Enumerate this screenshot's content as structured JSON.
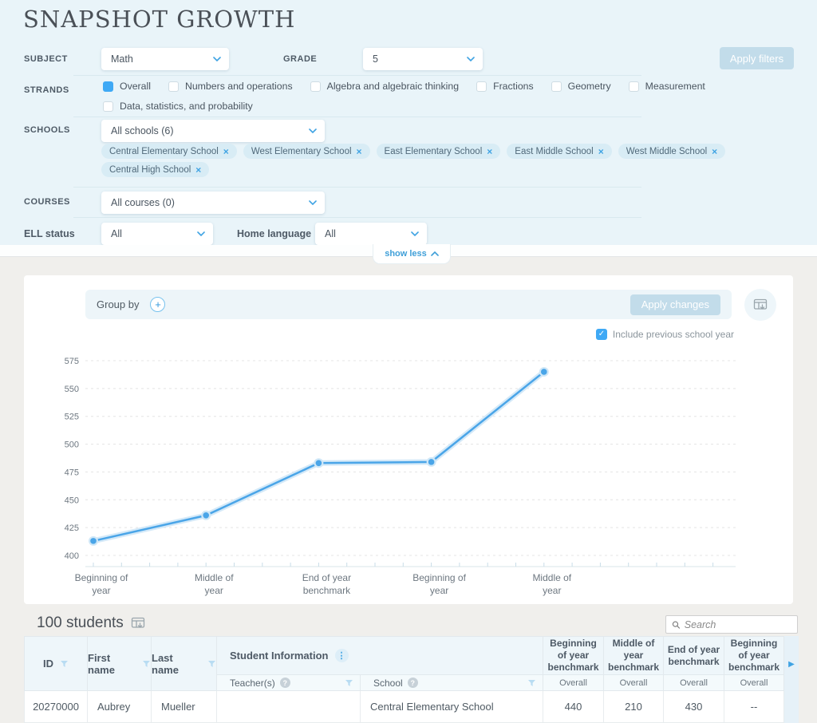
{
  "page": {
    "title": "SNAPSHOT GROWTH"
  },
  "icons": {
    "remove_tag": "×",
    "add": "+",
    "check": "✓",
    "menu_dots": "⋮",
    "help": "?",
    "scroll_right": "▶"
  },
  "filters": {
    "subject": {
      "label": "SUBJECT",
      "value": "Math"
    },
    "grade": {
      "label": "GRADE",
      "value": "5"
    },
    "apply_filters_label": "Apply filters",
    "strands": {
      "label": "STRANDS",
      "options": [
        {
          "label": "Overall",
          "checked": true
        },
        {
          "label": "Numbers and operations",
          "checked": false
        },
        {
          "label": "Algebra and algebraic thinking",
          "checked": false
        },
        {
          "label": "Fractions",
          "checked": false
        },
        {
          "label": "Geometry",
          "checked": false
        },
        {
          "label": "Measurement",
          "checked": false
        },
        {
          "label": "Data, statistics, and probability",
          "checked": false
        }
      ]
    },
    "schools": {
      "label": "SCHOOLS",
      "value": "All schools (6)",
      "tags": [
        "Central Elementary School",
        "West Elementary School",
        "East Elementary School",
        "East Middle School",
        "West Middle School",
        "Central High School"
      ]
    },
    "courses": {
      "label": "COURSES",
      "value": "All courses (0)"
    },
    "ell_status": {
      "label": "ELL status",
      "value": "All"
    },
    "home_language": {
      "label": "Home language",
      "value": "All"
    },
    "show_less_label": "show less"
  },
  "chart_panel": {
    "group_by_label": "Group by",
    "apply_changes_label": "Apply changes",
    "include_previous_label": "Include previous school year",
    "include_previous_checked": true
  },
  "chart_data": {
    "type": "line",
    "title": "",
    "categories": [
      "Beginning of year",
      "Middle of year",
      "End of year benchmark",
      "Beginning of year",
      "Middle of year"
    ],
    "values": [
      413,
      436,
      483,
      484,
      565
    ],
    "yticks": [
      400,
      425,
      450,
      475,
      500,
      525,
      550,
      575
    ],
    "ylim": [
      390,
      583
    ],
    "line_color": "#4aa5e8",
    "halo_color": "#cfe7f7",
    "grid": "horizontal-dashed",
    "legend_position": "none"
  },
  "students": {
    "count_label": "100 students",
    "search_placeholder": "Search",
    "table": {
      "columns": [
        {
          "label": "ID"
        },
        {
          "label": "First name"
        },
        {
          "label": "Last name"
        }
      ],
      "group_header": "Student Information",
      "sub_columns": [
        {
          "label": "Teacher(s)"
        },
        {
          "label": "School"
        }
      ],
      "benchmark_columns": [
        "Beginning of year benchmark",
        "Middle of year benchmark",
        "End of year benchmark",
        "Beginning of year benchmark"
      ],
      "benchmark_subheader": "Overall",
      "rows": [
        {
          "id": "20270000",
          "first_name": "Aubrey",
          "last_name": "Mueller",
          "teachers": "",
          "school": "Central Elementary School",
          "values": [
            "440",
            "210",
            "430",
            "--"
          ]
        }
      ]
    }
  },
  "colors": {
    "accent_blue": "#3fa3e3",
    "checkbox_blue": "#3fa9f5",
    "disabled_button_bg": "#c2dcea",
    "filter_panel_bg": "#e9f4f9",
    "page_bg": "#f0efec",
    "tag_bg": "#d8ecf5"
  }
}
